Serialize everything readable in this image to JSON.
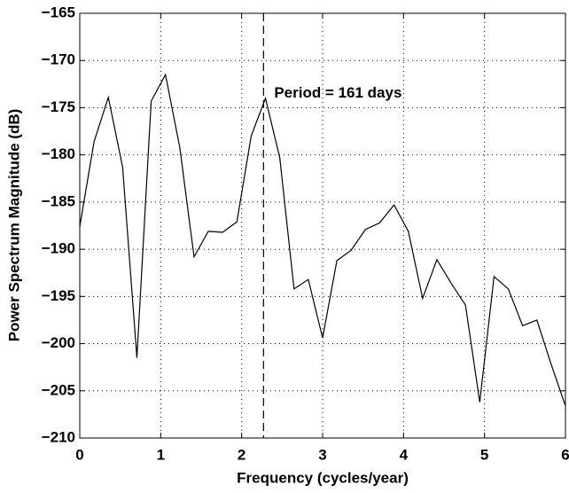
{
  "chart_data": {
    "type": "line",
    "xlabel": "Frequency (cycles/year)",
    "ylabel": "Power Spectrum Magnitude (dB)",
    "annotation": "Period = 161 days",
    "marker_x": 2.27,
    "x": [
      0,
      0.1765,
      0.3529,
      0.5294,
      0.7059,
      0.8824,
      1.0588,
      1.2353,
      1.4118,
      1.5882,
      1.7647,
      1.9412,
      2.1176,
      2.2941,
      2.4706,
      2.6471,
      2.8235,
      3.0,
      3.1765,
      3.3529,
      3.5294,
      3.7059,
      3.8824,
      4.0588,
      4.2353,
      4.4118,
      4.5882,
      4.7647,
      4.9412,
      5.1176,
      5.2941,
      5.4706,
      5.6471,
      5.8235,
      6.0
    ],
    "series": [
      {
        "color": "#000000",
        "values": [
          -187.6,
          -178.6,
          -173.9,
          -181.3,
          -201.5,
          -174.3,
          -171.5,
          -179.2,
          -190.8,
          -188.1,
          -188.2,
          -187.1,
          -178.0,
          -174.0,
          -180.3,
          -194.2,
          -193.2,
          -199.4,
          -191.2,
          -190.1,
          -187.9,
          -187.2,
          -185.3,
          -188.1,
          -195.2,
          -191.1,
          -193.6,
          -195.9,
          -206.2,
          -192.9,
          -194.2,
          -198.1,
          -197.5,
          -202.2,
          -206.6
        ]
      }
    ],
    "xlim": [
      0,
      6
    ],
    "xticks": [
      0,
      1,
      2,
      3,
      4,
      5,
      6
    ],
    "ylim": [
      -210,
      -165
    ],
    "yticks": [
      {
        "value": -210,
        "label": "−210"
      },
      {
        "value": -205,
        "label": "−205"
      },
      {
        "value": -200,
        "label": "−200"
      },
      {
        "value": -195,
        "label": "−195"
      },
      {
        "value": -190,
        "label": "−190"
      },
      {
        "value": -185,
        "label": "−185"
      },
      {
        "value": -180,
        "label": "−180"
      },
      {
        "value": -175,
        "label": "−175"
      },
      {
        "value": -170,
        "label": "−170"
      },
      {
        "value": -165,
        "label": "−165"
      }
    ],
    "grid": true
  }
}
